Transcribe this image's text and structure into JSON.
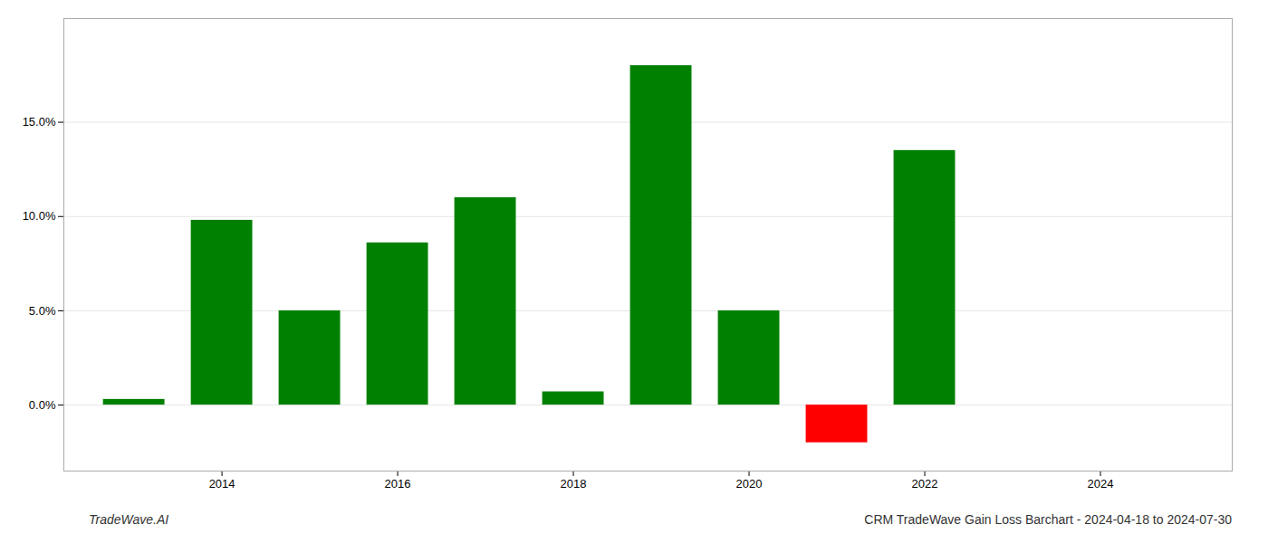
{
  "chart_data": {
    "type": "bar",
    "x": [
      2013,
      2014,
      2015,
      2016,
      2017,
      2018,
      2019,
      2020,
      2021,
      2022
    ],
    "values": [
      0.003,
      0.098,
      0.05,
      0.086,
      0.11,
      0.007,
      0.18,
      0.05,
      -0.02,
      0.135
    ],
    "colors": [
      "#008000",
      "#008000",
      "#008000",
      "#008000",
      "#008000",
      "#008000",
      "#008000",
      "#008000",
      "#ff0000",
      "#008000"
    ],
    "xlim": [
      2012.2,
      2025.5
    ],
    "xticks": [
      2014,
      2016,
      2018,
      2020,
      2022,
      2024
    ],
    "ylim": [
      -0.035,
      0.205
    ],
    "yticks": [
      {
        "value": 0.0,
        "label": "0.0%"
      },
      {
        "value": 0.05,
        "label": "5.0%"
      },
      {
        "value": 0.1,
        "label": "10.0%"
      },
      {
        "value": 0.15,
        "label": "15.0%"
      }
    ],
    "grid": true,
    "annotations": [
      "TradeWave.AI",
      "CRM TradeWave Gain Loss Barchart - 2024-04-18 to 2024-07-30"
    ]
  }
}
